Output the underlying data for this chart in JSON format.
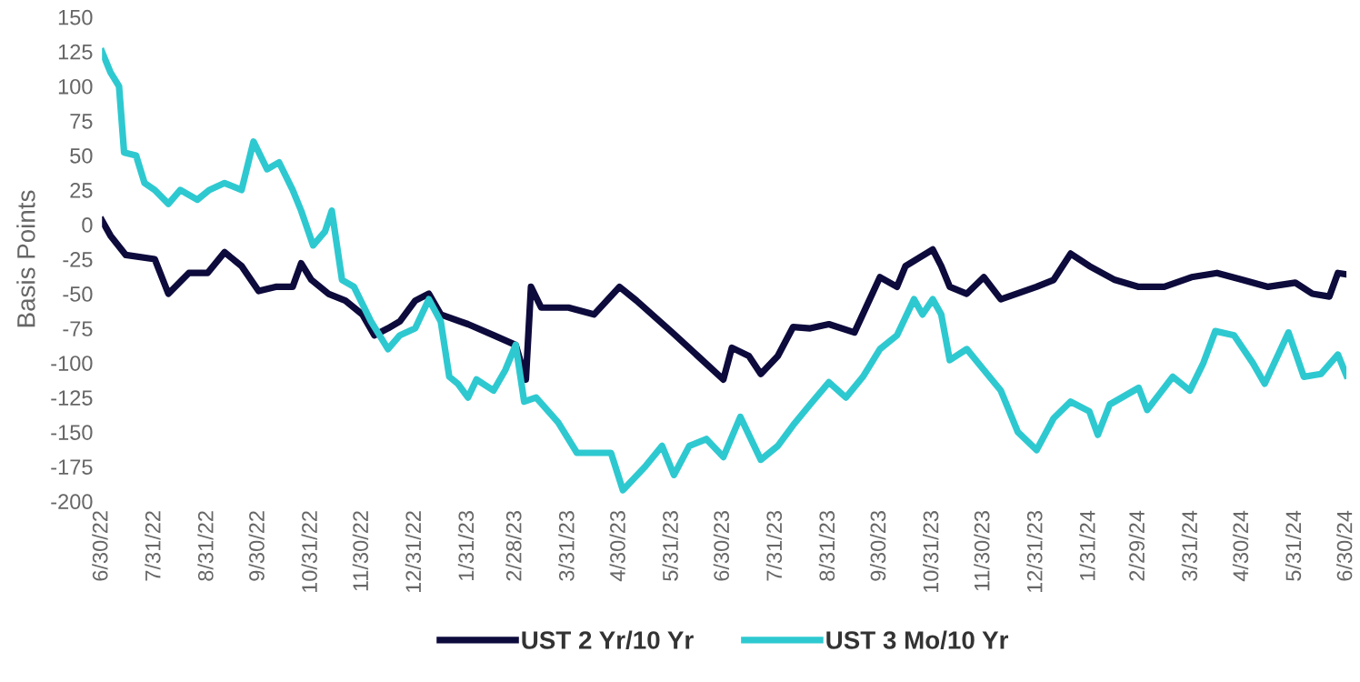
{
  "chart_data": {
    "type": "line",
    "ylabel": "Basis Points",
    "ylim": [
      -200,
      150
    ],
    "yticks": [
      -200,
      -175,
      -150,
      -125,
      -100,
      -75,
      -50,
      -25,
      0,
      25,
      50,
      75,
      100,
      125,
      150
    ],
    "xlim": [
      "2022-06-30",
      "2024-06-30"
    ],
    "xticks": [
      {
        "value": "2022-06-30",
        "label": "6/30/22"
      },
      {
        "value": "2022-07-31",
        "label": "7/31/22"
      },
      {
        "value": "2022-08-31",
        "label": "8/31/22"
      },
      {
        "value": "2022-09-30",
        "label": "9/30/22"
      },
      {
        "value": "2022-10-31",
        "label": "10/31/22"
      },
      {
        "value": "2022-11-30",
        "label": "11/30/22"
      },
      {
        "value": "2022-12-31",
        "label": "12/31/22"
      },
      {
        "value": "2023-01-31",
        "label": "1/31/23"
      },
      {
        "value": "2023-02-28",
        "label": "2/28/23"
      },
      {
        "value": "2023-03-31",
        "label": "3/31/23"
      },
      {
        "value": "2023-04-30",
        "label": "4/30/23"
      },
      {
        "value": "2023-05-31",
        "label": "5/31/23"
      },
      {
        "value": "2023-06-30",
        "label": "6/30/23"
      },
      {
        "value": "2023-07-31",
        "label": "7/31/23"
      },
      {
        "value": "2023-08-31",
        "label": "8/31/23"
      },
      {
        "value": "2023-09-30",
        "label": "9/30/23"
      },
      {
        "value": "2023-10-31",
        "label": "10/31/23"
      },
      {
        "value": "2023-11-30",
        "label": "11/30/23"
      },
      {
        "value": "2023-12-31",
        "label": "12/31/23"
      },
      {
        "value": "2024-01-31",
        "label": "1/31/24"
      },
      {
        "value": "2024-02-29",
        "label": "2/29/24"
      },
      {
        "value": "2024-03-31",
        "label": "3/31/24"
      },
      {
        "value": "2024-04-30",
        "label": "4/30/24"
      },
      {
        "value": "2024-05-31",
        "label": "5/31/24"
      },
      {
        "value": "2024-06-30",
        "label": "6/30/24"
      }
    ],
    "grid": false,
    "legend": "bottom",
    "line_style": "solid",
    "marker": "none",
    "series": [
      {
        "name": "UST 2 Yr/10 Yr",
        "color": "#0d0a3c",
        "x": [
          "2022-06-30",
          "2022-07-05",
          "2022-07-14",
          "2022-07-31",
          "2022-08-08",
          "2022-08-20",
          "2022-08-31",
          "2022-09-10",
          "2022-09-20",
          "2022-09-30",
          "2022-10-10",
          "2022-10-20",
          "2022-10-25",
          "2022-10-31",
          "2022-11-10",
          "2022-11-20",
          "2022-11-30",
          "2022-12-07",
          "2022-12-15",
          "2022-12-22",
          "2022-12-31",
          "2023-01-08",
          "2023-01-15",
          "2023-01-31",
          "2023-02-15",
          "2023-02-28",
          "2023-03-06",
          "2023-03-09",
          "2023-03-15",
          "2023-03-31",
          "2023-04-15",
          "2023-04-30",
          "2023-05-10",
          "2023-05-31",
          "2023-06-15",
          "2023-06-30",
          "2023-07-05",
          "2023-07-15",
          "2023-07-22",
          "2023-08-01",
          "2023-08-10",
          "2023-08-20",
          "2023-08-31",
          "2023-09-15",
          "2023-09-30",
          "2023-10-10",
          "2023-10-15",
          "2023-10-31",
          "2023-11-05",
          "2023-11-10",
          "2023-11-20",
          "2023-11-30",
          "2023-12-10",
          "2023-12-31",
          "2024-01-10",
          "2024-01-20",
          "2024-01-31",
          "2024-02-15",
          "2024-02-29",
          "2024-03-15",
          "2024-03-31",
          "2024-04-15",
          "2024-04-30",
          "2024-05-15",
          "2024-05-31",
          "2024-06-10",
          "2024-06-20",
          "2024-06-25",
          "2024-06-30"
        ],
        "values": [
          3,
          -8,
          -22,
          -25,
          -50,
          -35,
          -35,
          -20,
          -30,
          -48,
          -45,
          -45,
          -28,
          -40,
          -50,
          -55,
          -65,
          -80,
          -75,
          -70,
          -55,
          -50,
          -65,
          -72,
          -80,
          -87,
          -112,
          -45,
          -60,
          -60,
          -65,
          -45,
          -55,
          -78,
          -95,
          -112,
          -89,
          -95,
          -108,
          -95,
          -74,
          -75,
          -72,
          -78,
          -38,
          -45,
          -30,
          -18,
          -30,
          -45,
          -50,
          -38,
          -54,
          -45,
          -40,
          -21,
          -30,
          -40,
          -45,
          -45,
          -38,
          -35,
          -40,
          -45,
          -42,
          -50,
          -52,
          -35,
          -36
        ]
      },
      {
        "name": "UST 3 Mo/10 Yr",
        "color": "#2ec9d0",
        "x": [
          "2022-06-30",
          "2022-07-05",
          "2022-07-10",
          "2022-07-13",
          "2022-07-20",
          "2022-07-25",
          "2022-07-31",
          "2022-08-08",
          "2022-08-15",
          "2022-08-25",
          "2022-09-01",
          "2022-09-10",
          "2022-09-20",
          "2022-09-27",
          "2022-10-05",
          "2022-10-12",
          "2022-10-20",
          "2022-10-25",
          "2022-11-01",
          "2022-11-08",
          "2022-11-12",
          "2022-11-18",
          "2022-11-25",
          "2022-12-05",
          "2022-12-15",
          "2022-12-22",
          "2022-12-31",
          "2023-01-08",
          "2023-01-15",
          "2023-01-20",
          "2023-01-25",
          "2023-01-31",
          "2023-02-05",
          "2023-02-15",
          "2023-02-22",
          "2023-02-28",
          "2023-03-05",
          "2023-03-12",
          "2023-03-25",
          "2023-04-05",
          "2023-04-15",
          "2023-04-25",
          "2023-05-02",
          "2023-05-15",
          "2023-05-25",
          "2023-06-01",
          "2023-06-10",
          "2023-06-20",
          "2023-06-30",
          "2023-07-10",
          "2023-07-22",
          "2023-08-01",
          "2023-08-10",
          "2023-08-20",
          "2023-08-31",
          "2023-09-10",
          "2023-09-20",
          "2023-09-30",
          "2023-10-10",
          "2023-10-20",
          "2023-10-25",
          "2023-10-31",
          "2023-11-05",
          "2023-11-10",
          "2023-11-20",
          "2023-11-30",
          "2023-12-10",
          "2023-12-20",
          "2023-12-31",
          "2024-01-10",
          "2024-01-20",
          "2024-01-31",
          "2024-02-05",
          "2024-02-12",
          "2024-02-29",
          "2024-03-05",
          "2024-03-20",
          "2024-03-30",
          "2024-04-07",
          "2024-04-14",
          "2024-04-25",
          "2024-05-06",
          "2024-05-13",
          "2024-05-27",
          "2024-06-05",
          "2024-06-15",
          "2024-06-25",
          "2024-06-30"
        ],
        "values": [
          125,
          110,
          100,
          52,
          50,
          30,
          25,
          15,
          25,
          18,
          25,
          30,
          25,
          60,
          40,
          45,
          25,
          10,
          -15,
          -5,
          10,
          -40,
          -45,
          -70,
          -90,
          -80,
          -75,
          -54,
          -70,
          -110,
          -115,
          -125,
          -112,
          -120,
          -105,
          -87,
          -128,
          -125,
          -143,
          -165,
          -165,
          -165,
          -192,
          -175,
          -160,
          -181,
          -160,
          -155,
          -168,
          -139,
          -170,
          -160,
          -145,
          -130,
          -114,
          -125,
          -110,
          -90,
          -80,
          -54,
          -65,
          -54,
          -65,
          -98,
          -90,
          -105,
          -120,
          -150,
          -163,
          -140,
          -128,
          -135,
          -152,
          -130,
          -118,
          -134,
          -110,
          -120,
          -100,
          -77,
          -80,
          -100,
          -115,
          -78,
          -110,
          -108,
          -94,
          -109
        ]
      }
    ]
  }
}
